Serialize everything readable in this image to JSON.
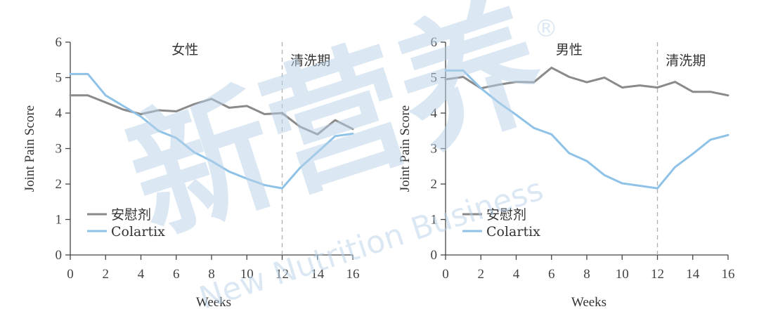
{
  "watermark": {
    "main_text": "新营养",
    "sub_text": "New Nutrition Business",
    "registered_mark": "®",
    "color": "#b9d2e8"
  },
  "colors": {
    "placebo": "#8a8a8a",
    "colartix": "#8ec2e6",
    "axis": "#444444",
    "divider": "#b0b0b0"
  },
  "chart_data": [
    {
      "type": "line",
      "title": "",
      "xlabel": "Weeks",
      "ylabel": "Joint Pain Score",
      "xlim": [
        0,
        16
      ],
      "ylim": [
        0,
        6
      ],
      "xticks": [
        0,
        2,
        4,
        6,
        8,
        10,
        12,
        14,
        16
      ],
      "yticks": [
        0,
        1,
        2,
        3,
        4,
        5,
        6
      ],
      "grid": false,
      "legend_position": "bottom-left",
      "annotations": [
        {
          "text": "女性",
          "x": 6.5,
          "y": 5.8
        },
        {
          "text": "清洗期",
          "x": 13.6,
          "y": 5.5
        }
      ],
      "divider_x": 12,
      "series": [
        {
          "name": "安慰剂",
          "color": "#8a8a8a",
          "x": [
            0,
            1,
            2,
            3,
            4,
            5,
            6,
            7,
            8,
            9,
            10,
            11,
            12,
            13,
            14,
            15,
            16
          ],
          "y": [
            4.5,
            4.5,
            4.3,
            4.1,
            3.97,
            4.08,
            4.05,
            4.25,
            4.4,
            4.15,
            4.2,
            3.97,
            4.0,
            3.62,
            3.4,
            3.8,
            3.55
          ]
        },
        {
          "name": "Colartix",
          "color": "#8ec2e6",
          "x": [
            0,
            1,
            2,
            3,
            4,
            5,
            6,
            7,
            8,
            9,
            10,
            11,
            12,
            13,
            14,
            15,
            16
          ],
          "y": [
            5.1,
            5.1,
            4.5,
            4.2,
            3.9,
            3.5,
            3.3,
            2.9,
            2.65,
            2.35,
            2.15,
            1.97,
            1.88,
            2.45,
            2.9,
            3.35,
            3.42
          ]
        }
      ]
    },
    {
      "type": "line",
      "title": "",
      "xlabel": "Weeks",
      "ylabel": "Joint Pain Score",
      "xlim": [
        0,
        16
      ],
      "ylim": [
        0,
        6
      ],
      "xticks": [
        0,
        2,
        4,
        6,
        8,
        10,
        12,
        14,
        16
      ],
      "yticks": [
        0,
        1,
        2,
        3,
        4,
        5,
        6
      ],
      "grid": false,
      "legend_position": "bottom-left",
      "annotations": [
        {
          "text": "男性",
          "x": 7.0,
          "y": 5.8
        },
        {
          "text": "清洗期",
          "x": 13.6,
          "y": 5.5
        }
      ],
      "divider_x": 12,
      "series": [
        {
          "name": "安慰剂",
          "color": "#8a8a8a",
          "x": [
            0,
            1,
            2,
            3,
            4,
            5,
            6,
            7,
            8,
            9,
            10,
            11,
            12,
            13,
            14,
            15,
            16
          ],
          "y": [
            4.95,
            5.02,
            4.7,
            4.8,
            4.88,
            4.87,
            5.28,
            5.02,
            4.87,
            5.0,
            4.72,
            4.78,
            4.72,
            4.88,
            4.6,
            4.6,
            4.5
          ]
        },
        {
          "name": "Colartix",
          "color": "#8ec2e6",
          "x": [
            0,
            1,
            2,
            3,
            4,
            5,
            6,
            7,
            8,
            9,
            10,
            11,
            12,
            13,
            14,
            15,
            16
          ],
          "y": [
            5.2,
            5.2,
            4.7,
            4.3,
            3.95,
            3.58,
            3.4,
            2.87,
            2.65,
            2.25,
            2.02,
            1.95,
            1.88,
            2.48,
            2.85,
            3.25,
            3.38
          ]
        }
      ]
    }
  ]
}
